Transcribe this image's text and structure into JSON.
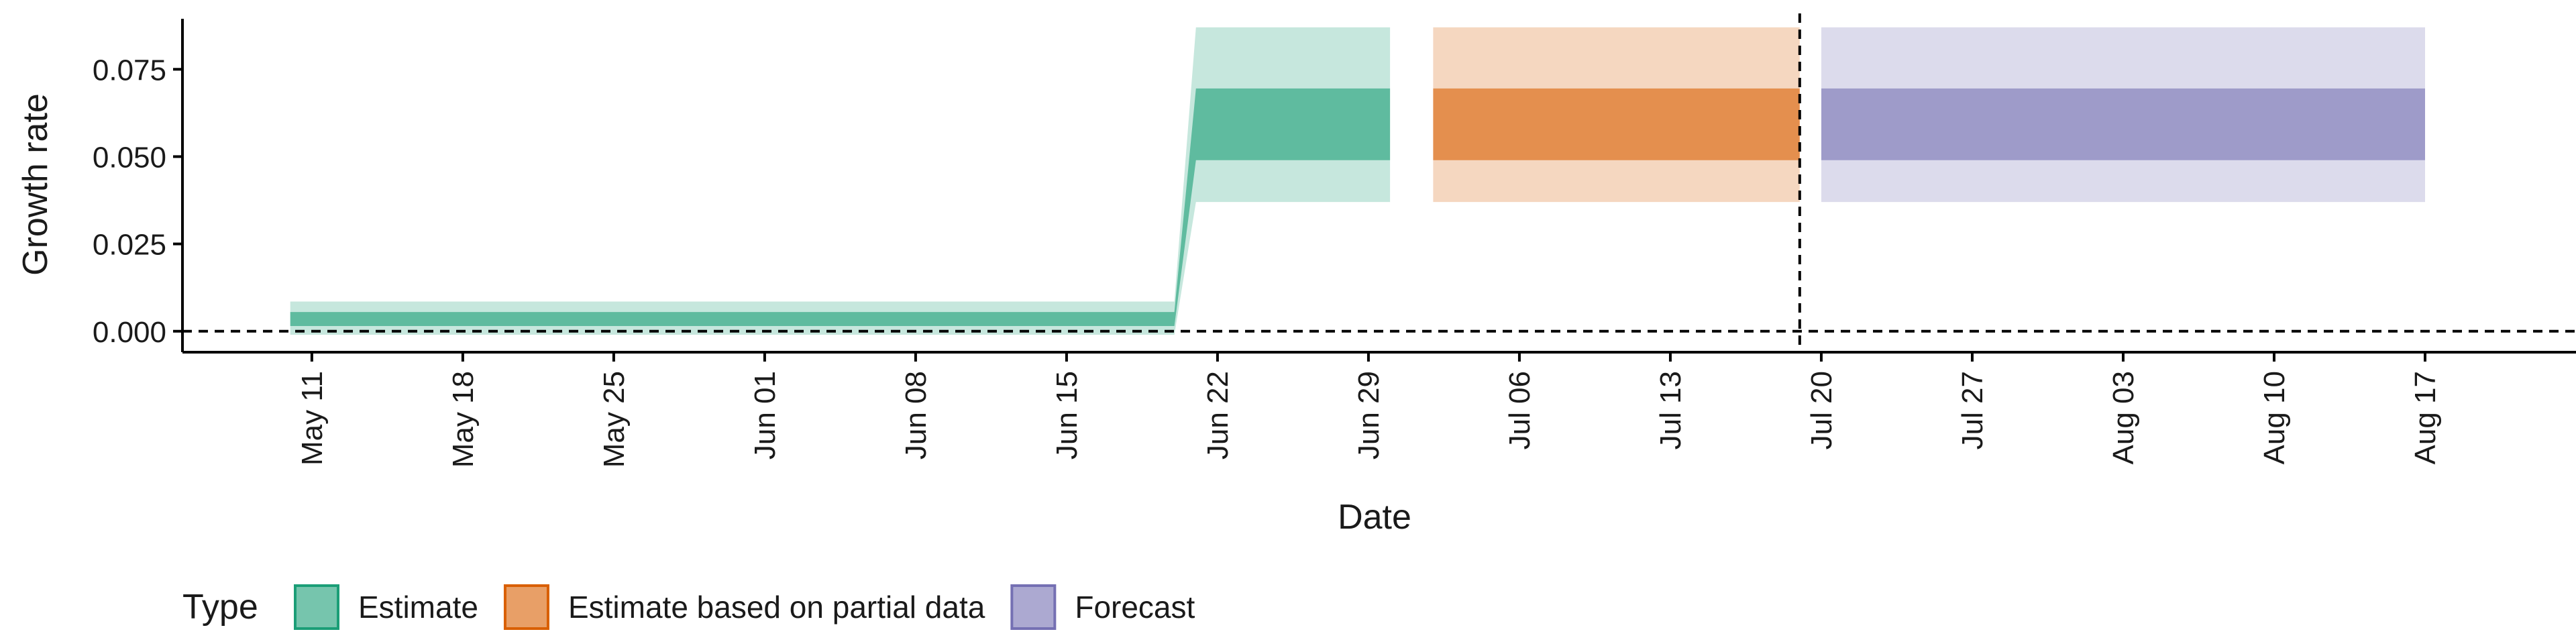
{
  "chart_data": {
    "type": "area",
    "xlabel": "Date",
    "ylabel": "Growth rate",
    "x_ticks": [
      "May 11",
      "May 18",
      "May 25",
      "Jun 01",
      "Jun 08",
      "Jun 15",
      "Jun 22",
      "Jun 29",
      "Jul 06",
      "Jul 13",
      "Jul 20",
      "Jul 27",
      "Aug 03",
      "Aug 10",
      "Aug 17"
    ],
    "y_ticks": [
      "0.000",
      "0.025",
      "0.050",
      "0.075"
    ],
    "xlim": [
      "2020-05-05",
      "2020-08-24"
    ],
    "ylim": [
      -0.006,
      0.091
    ],
    "grid": false,
    "legend": {
      "title": "Type",
      "position": "bottom",
      "entries": [
        "Estimate",
        "Estimate based on partial data",
        "Forecast"
      ]
    },
    "colors": {
      "Estimate": "#1b9e77",
      "Estimate based on partial data": "#d95f02",
      "Forecast": "#7570b3"
    },
    "reference_lines": [
      {
        "axis": "y",
        "value": 0,
        "style": "dashed"
      },
      {
        "axis": "x",
        "value": "2020-07-19",
        "style": "dashed"
      }
    ],
    "series": [
      {
        "name": "Estimate",
        "x": [
          "2020-05-10",
          "2020-06-20",
          "2020-06-21",
          "2020-06-30"
        ],
        "lower_90": [
          -0.001,
          -0.001,
          0.037,
          0.037
        ],
        "upper_90": [
          0.0085,
          0.0085,
          0.087,
          0.087
        ],
        "lower_50": [
          0.0015,
          0.0015,
          0.049,
          0.049
        ],
        "upper_50": [
          0.0055,
          0.0055,
          0.0695,
          0.0695
        ]
      },
      {
        "name": "Estimate based on partial data",
        "x": [
          "2020-07-02",
          "2020-07-19"
        ],
        "lower_90": [
          0.037,
          0.037
        ],
        "upper_90": [
          0.087,
          0.087
        ],
        "lower_50": [
          0.049,
          0.049
        ],
        "upper_50": [
          0.0695,
          0.0695
        ]
      },
      {
        "name": "Forecast",
        "x": [
          "2020-07-20",
          "2020-08-17"
        ],
        "lower_90": [
          0.037,
          0.037
        ],
        "upper_90": [
          0.087,
          0.087
        ],
        "lower_50": [
          0.049,
          0.049
        ],
        "upper_50": [
          0.0695,
          0.0695
        ]
      }
    ]
  }
}
